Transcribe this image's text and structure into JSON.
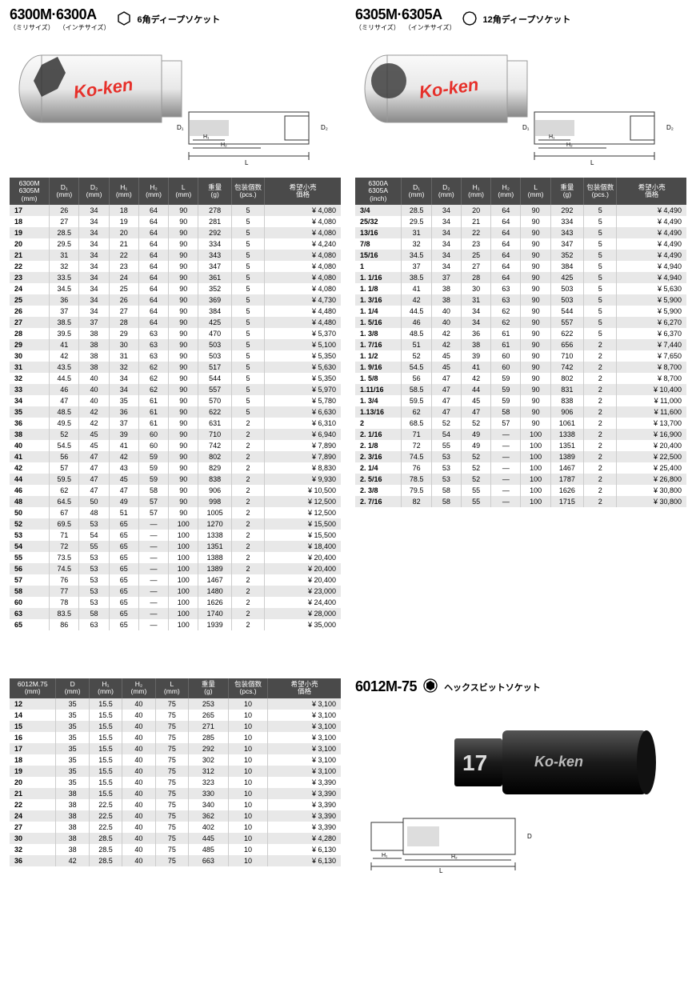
{
  "colors": {
    "header_bg": "#4a4a4a",
    "header_fg": "#ffffff",
    "row_odd": "#e8e8e8",
    "row_even": "#ffffff",
    "brand_red": "#e6302a",
    "socket_chrome_light": "#f5f5f5",
    "socket_chrome_dark": "#b8b8b8",
    "socket_black": "#222222"
  },
  "product_6300": {
    "title": "6300M·6300A",
    "sub1": "（ミリサイズ）",
    "sub2": "（インチサイズ）",
    "desc": "6角ディープソケット",
    "brand": "Ko-ken"
  },
  "product_6305": {
    "title": "6305M·6305A",
    "sub1": "（ミリサイズ）",
    "sub2": "（インチサイズ）",
    "desc": "12角ディープソケット",
    "brand": "Ko-ken"
  },
  "product_6012": {
    "title": "6012M-75",
    "desc": "ヘックスビットソケット",
    "brand": "Ko-ken"
  },
  "diagram_labels": {
    "D1": "D₁",
    "D2": "D₂",
    "H1": "H₁",
    "H2": "H₂",
    "L": "L",
    "D": "D"
  },
  "table_mm": {
    "columns": [
      "6300M\n6305M\n(mm)",
      "D₁\n(mm)",
      "D₂\n(mm)",
      "H₁\n(mm)",
      "H₂\n(mm)",
      "L\n(mm)",
      "重量\n(g)",
      "包装個数\n(pcs.)",
      "希望小売\n価格"
    ],
    "col_widths": [
      "12%",
      "9%",
      "9%",
      "9%",
      "9%",
      "9%",
      "10%",
      "10%",
      "23%"
    ],
    "rows": [
      [
        "17",
        "26",
        "34",
        "18",
        "64",
        "90",
        "278",
        "5",
        "¥ 4,080"
      ],
      [
        "18",
        "27",
        "34",
        "19",
        "64",
        "90",
        "281",
        "5",
        "¥ 4,080"
      ],
      [
        "19",
        "28.5",
        "34",
        "20",
        "64",
        "90",
        "292",
        "5",
        "¥ 4,080"
      ],
      [
        "20",
        "29.5",
        "34",
        "21",
        "64",
        "90",
        "334",
        "5",
        "¥ 4,240"
      ],
      [
        "21",
        "31",
        "34",
        "22",
        "64",
        "90",
        "343",
        "5",
        "¥ 4,080"
      ],
      [
        "22",
        "32",
        "34",
        "23",
        "64",
        "90",
        "347",
        "5",
        "¥ 4,080"
      ],
      [
        "23",
        "33.5",
        "34",
        "24",
        "64",
        "90",
        "361",
        "5",
        "¥ 4,080"
      ],
      [
        "24",
        "34.5",
        "34",
        "25",
        "64",
        "90",
        "352",
        "5",
        "¥ 4,080"
      ],
      [
        "25",
        "36",
        "34",
        "26",
        "64",
        "90",
        "369",
        "5",
        "¥ 4,730"
      ],
      [
        "26",
        "37",
        "34",
        "27",
        "64",
        "90",
        "384",
        "5",
        "¥ 4,480"
      ],
      [
        "27",
        "38.5",
        "37",
        "28",
        "64",
        "90",
        "425",
        "5",
        "¥ 4,480"
      ],
      [
        "28",
        "39.5",
        "38",
        "29",
        "63",
        "90",
        "470",
        "5",
        "¥ 5,370"
      ],
      [
        "29",
        "41",
        "38",
        "30",
        "63",
        "90",
        "503",
        "5",
        "¥ 5,100"
      ],
      [
        "30",
        "42",
        "38",
        "31",
        "63",
        "90",
        "503",
        "5",
        "¥ 5,350"
      ],
      [
        "31",
        "43.5",
        "38",
        "32",
        "62",
        "90",
        "517",
        "5",
        "¥ 5,630"
      ],
      [
        "32",
        "44.5",
        "40",
        "34",
        "62",
        "90",
        "544",
        "5",
        "¥ 5,350"
      ],
      [
        "33",
        "46",
        "40",
        "34",
        "62",
        "90",
        "557",
        "5",
        "¥ 5,970"
      ],
      [
        "34",
        "47",
        "40",
        "35",
        "61",
        "90",
        "570",
        "5",
        "¥ 5,780"
      ],
      [
        "35",
        "48.5",
        "42",
        "36",
        "61",
        "90",
        "622",
        "5",
        "¥ 6,630"
      ],
      [
        "36",
        "49.5",
        "42",
        "37",
        "61",
        "90",
        "631",
        "2",
        "¥ 6,310"
      ],
      [
        "38",
        "52",
        "45",
        "39",
        "60",
        "90",
        "710",
        "2",
        "¥ 6,940"
      ],
      [
        "40",
        "54.5",
        "45",
        "41",
        "60",
        "90",
        "742",
        "2",
        "¥ 7,890"
      ],
      [
        "41",
        "56",
        "47",
        "42",
        "59",
        "90",
        "802",
        "2",
        "¥ 7,890"
      ],
      [
        "42",
        "57",
        "47",
        "43",
        "59",
        "90",
        "829",
        "2",
        "¥ 8,830"
      ],
      [
        "44",
        "59.5",
        "47",
        "45",
        "59",
        "90",
        "838",
        "2",
        "¥ 9,930"
      ],
      [
        "46",
        "62",
        "47",
        "47",
        "58",
        "90",
        "906",
        "2",
        "¥ 10,500"
      ],
      [
        "48",
        "64.5",
        "50",
        "49",
        "57",
        "90",
        "998",
        "2",
        "¥ 12,500"
      ],
      [
        "50",
        "67",
        "48",
        "51",
        "57",
        "90",
        "1005",
        "2",
        "¥ 12,500"
      ],
      [
        "52",
        "69.5",
        "53",
        "65",
        "—",
        "100",
        "1270",
        "2",
        "¥ 15,500"
      ],
      [
        "53",
        "71",
        "54",
        "65",
        "—",
        "100",
        "1338",
        "2",
        "¥ 15,500"
      ],
      [
        "54",
        "72",
        "55",
        "65",
        "—",
        "100",
        "1351",
        "2",
        "¥ 18,400"
      ],
      [
        "55",
        "73.5",
        "53",
        "65",
        "—",
        "100",
        "1388",
        "2",
        "¥ 20,400"
      ],
      [
        "56",
        "74.5",
        "53",
        "65",
        "—",
        "100",
        "1389",
        "2",
        "¥ 20,400"
      ],
      [
        "57",
        "76",
        "53",
        "65",
        "—",
        "100",
        "1467",
        "2",
        "¥ 20,400"
      ],
      [
        "58",
        "77",
        "53",
        "65",
        "—",
        "100",
        "1480",
        "2",
        "¥ 23,000"
      ],
      [
        "60",
        "78",
        "53",
        "65",
        "—",
        "100",
        "1626",
        "2",
        "¥ 24,400"
      ],
      [
        "63",
        "83.5",
        "58",
        "65",
        "—",
        "100",
        "1740",
        "2",
        "¥ 28,000"
      ],
      [
        "65",
        "86",
        "63",
        "65",
        "—",
        "100",
        "1939",
        "2",
        "¥ 35,000"
      ]
    ]
  },
  "table_inch": {
    "columns": [
      "6300A\n6305A\n(inch)",
      "D₁\n(mm)",
      "D₂\n(mm)",
      "H₁\n(mm)",
      "H₂\n(mm)",
      "L\n(mm)",
      "重量\n(g)",
      "包装個数\n(pcs.)",
      "希望小売\n価格"
    ],
    "col_widths": [
      "14%",
      "9%",
      "9%",
      "9%",
      "9%",
      "9%",
      "10%",
      "10%",
      "21%"
    ],
    "rows": [
      [
        " 3/4",
        "28.5",
        "34",
        "20",
        "64",
        "90",
        "292",
        "5",
        "¥ 4,490"
      ],
      [
        " 25/32",
        "29.5",
        "34",
        "21",
        "64",
        "90",
        "334",
        "5",
        "¥ 4,490"
      ],
      [
        " 13/16",
        "31",
        "34",
        "22",
        "64",
        "90",
        "343",
        "5",
        "¥ 4,490"
      ],
      [
        " 7/8",
        "32",
        "34",
        "23",
        "64",
        "90",
        "347",
        "5",
        "¥ 4,490"
      ],
      [
        " 15/16",
        "34.5",
        "34",
        "25",
        "64",
        "90",
        "352",
        "5",
        "¥ 4,490"
      ],
      [
        "1",
        "37",
        "34",
        "27",
        "64",
        "90",
        "384",
        "5",
        "¥ 4,940"
      ],
      [
        "1. 1/16",
        "38.5",
        "37",
        "28",
        "64",
        "90",
        "425",
        "5",
        "¥ 4,940"
      ],
      [
        "1. 1/8",
        "41",
        "38",
        "30",
        "63",
        "90",
        "503",
        "5",
        "¥ 5,630"
      ],
      [
        "1. 3/16",
        "42",
        "38",
        "31",
        "63",
        "90",
        "503",
        "5",
        "¥ 5,900"
      ],
      [
        "1. 1/4",
        "44.5",
        "40",
        "34",
        "62",
        "90",
        "544",
        "5",
        "¥ 5,900"
      ],
      [
        "1. 5/16",
        "46",
        "40",
        "34",
        "62",
        "90",
        "557",
        "5",
        "¥ 6,270"
      ],
      [
        "1. 3/8",
        "48.5",
        "42",
        "36",
        "61",
        "90",
        "622",
        "5",
        "¥ 6,370"
      ],
      [
        "1. 7/16",
        "51",
        "42",
        "38",
        "61",
        "90",
        "656",
        "2",
        "¥ 7,440"
      ],
      [
        "1. 1/2",
        "52",
        "45",
        "39",
        "60",
        "90",
        "710",
        "2",
        "¥ 7,650"
      ],
      [
        "1. 9/16",
        "54.5",
        "45",
        "41",
        "60",
        "90",
        "742",
        "2",
        "¥ 8,700"
      ],
      [
        "1. 5/8",
        "56",
        "47",
        "42",
        "59",
        "90",
        "802",
        "2",
        "¥ 8,700"
      ],
      [
        "1.11/16",
        "58.5",
        "47",
        "44",
        "59",
        "90",
        "831",
        "2",
        "¥ 10,400"
      ],
      [
        "1. 3/4",
        "59.5",
        "47",
        "45",
        "59",
        "90",
        "838",
        "2",
        "¥ 11,000"
      ],
      [
        "1.13/16",
        "62",
        "47",
        "47",
        "58",
        "90",
        "906",
        "2",
        "¥ 11,600"
      ],
      [
        "2",
        "68.5",
        "52",
        "52",
        "57",
        "90",
        "1061",
        "2",
        "¥ 13,700"
      ],
      [
        "2. 1/16",
        "71",
        "54",
        "49",
        "—",
        "100",
        "1338",
        "2",
        "¥ 16,900"
      ],
      [
        "2. 1/8",
        "72",
        "55",
        "49",
        "—",
        "100",
        "1351",
        "2",
        "¥ 20,400"
      ],
      [
        "2. 3/16",
        "74.5",
        "53",
        "52",
        "—",
        "100",
        "1389",
        "2",
        "¥ 22,500"
      ],
      [
        "2. 1/4",
        "76",
        "53",
        "52",
        "—",
        "100",
        "1467",
        "2",
        "¥ 25,400"
      ],
      [
        "2. 5/16",
        "78.5",
        "53",
        "52",
        "—",
        "100",
        "1787",
        "2",
        "¥ 26,800"
      ],
      [
        "2. 3/8",
        "79.5",
        "58",
        "55",
        "—",
        "100",
        "1626",
        "2",
        "¥ 30,800"
      ],
      [
        "2. 7/16",
        "82",
        "58",
        "55",
        "—",
        "100",
        "1715",
        "2",
        "¥ 30,800"
      ]
    ]
  },
  "table_6012": {
    "columns": [
      "6012M.75\n(mm)",
      "D\n(mm)",
      "H₁\n(mm)",
      "H₂\n(mm)",
      "L\n(mm)",
      "重量\n(g)",
      "包装個数\n(pcs.)",
      "希望小売\n価格"
    ],
    "col_widths": [
      "14%",
      "10%",
      "10%",
      "10%",
      "10%",
      "12%",
      "12%",
      "22%"
    ],
    "rows": [
      [
        "12",
        "35",
        "15.5",
        "40",
        "75",
        "253",
        "10",
        "¥ 3,100"
      ],
      [
        "14",
        "35",
        "15.5",
        "40",
        "75",
        "265",
        "10",
        "¥ 3,100"
      ],
      [
        "15",
        "35",
        "15.5",
        "40",
        "75",
        "271",
        "10",
        "¥ 3,100"
      ],
      [
        "16",
        "35",
        "15.5",
        "40",
        "75",
        "285",
        "10",
        "¥ 3,100"
      ],
      [
        "17",
        "35",
        "15.5",
        "40",
        "75",
        "292",
        "10",
        "¥ 3,100"
      ],
      [
        "18",
        "35",
        "15.5",
        "40",
        "75",
        "302",
        "10",
        "¥ 3,100"
      ],
      [
        "19",
        "35",
        "15.5",
        "40",
        "75",
        "312",
        "10",
        "¥ 3,100"
      ],
      [
        "20",
        "35",
        "15.5",
        "40",
        "75",
        "323",
        "10",
        "¥ 3,390"
      ],
      [
        "21",
        "38",
        "15.5",
        "40",
        "75",
        "330",
        "10",
        "¥ 3,390"
      ],
      [
        "22",
        "38",
        "22.5",
        "40",
        "75",
        "340",
        "10",
        "¥ 3,390"
      ],
      [
        "24",
        "38",
        "22.5",
        "40",
        "75",
        "362",
        "10",
        "¥ 3,390"
      ],
      [
        "27",
        "38",
        "22.5",
        "40",
        "75",
        "402",
        "10",
        "¥ 3,390"
      ],
      [
        "30",
        "38",
        "28.5",
        "40",
        "75",
        "445",
        "10",
        "¥ 4,280"
      ],
      [
        "32",
        "38",
        "28.5",
        "40",
        "75",
        "485",
        "10",
        "¥ 6,130"
      ],
      [
        "36",
        "42",
        "28.5",
        "40",
        "75",
        "663",
        "10",
        "¥ 6,130"
      ]
    ]
  }
}
